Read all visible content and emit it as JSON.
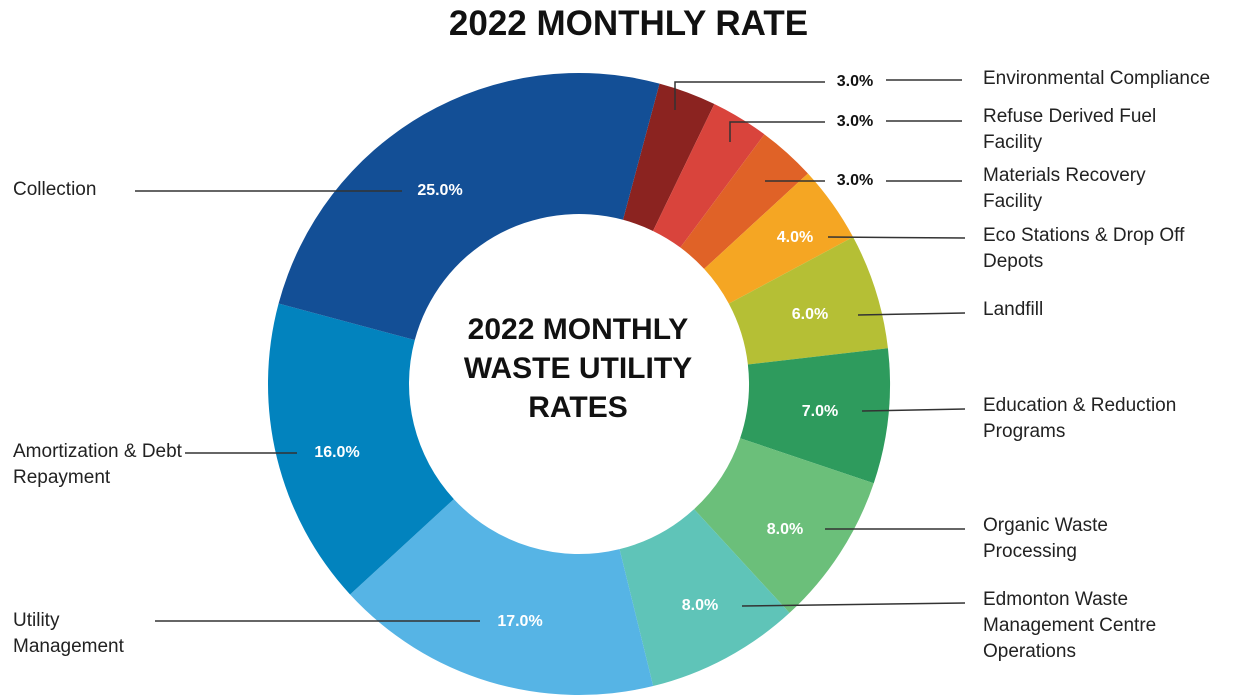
{
  "chart_data": {
    "type": "donut",
    "title": "2022 MONTHLY RATE",
    "center_text": "2022 MONTHLY WASTE UTILITY RATES",
    "categories": [
      "Environmental Compliance",
      "Refuse Derived Fuel Facility",
      "Materials Recovery Facility",
      "Eco Stations & Drop Off Depots",
      "Landfill",
      "Education & Reduction Programs",
      "Organic Waste Processing",
      "Edmonton Waste Management Centre Operations",
      "Utility Management",
      "Amortization & Debt Repayment",
      "Collection"
    ],
    "values": [
      3,
      3,
      3,
      4,
      6,
      7,
      8,
      8,
      17,
      16,
      25
    ],
    "value_labels": [
      "3.0%",
      "3.0%",
      "3.0%",
      "4.0%",
      "6.0%",
      "7.0%",
      "8.0%",
      "8.0%",
      "17.0%",
      "16.0%",
      "25.0%"
    ],
    "colors": [
      "#8b2320",
      "#d9443c",
      "#e06227",
      "#f5a623",
      "#b5bf35",
      "#2e9b5d",
      "#6bbf7a",
      "#5fc4b8",
      "#56b4e5",
      "#0283be",
      "#134f96"
    ]
  }
}
